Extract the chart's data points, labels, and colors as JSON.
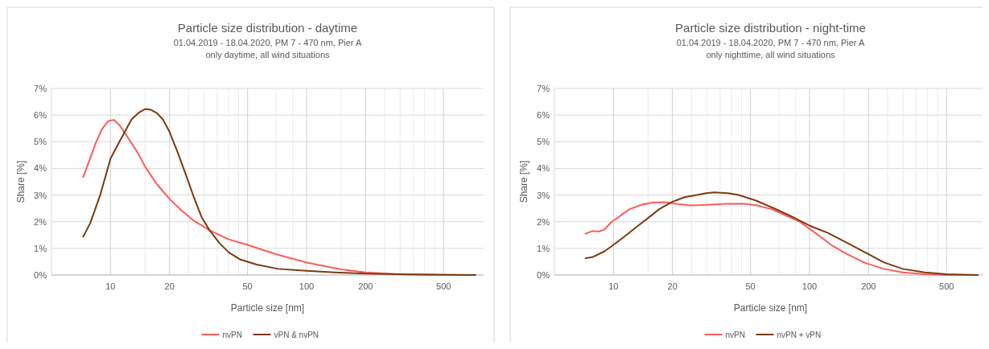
{
  "chart_data": [
    {
      "type": "line",
      "title": "Particle size distribution - daytime",
      "subtitle": "01.04.2019 - 18.04.2020, PM 7 - 470 nm, Pier A\nonly daytime, all wind situations",
      "xlabel": "Particle size [nm]",
      "ylabel": "Share [%]",
      "log": "x",
      "grid": true,
      "legend": "bottom",
      "xlim": [
        5,
        800
      ],
      "xticks": [
        10,
        {
          "value": 15,
          "label": null
        },
        20,
        {
          "value": 25,
          "label": null
        },
        {
          "value": 30,
          "label": null
        },
        {
          "value": 35,
          "label": null
        },
        {
          "value": 40,
          "label": null
        },
        {
          "value": 45,
          "label": null
        },
        50,
        {
          "value": 70,
          "label": null
        },
        {
          "value": 85,
          "label": null
        },
        100,
        {
          "value": 150,
          "label": null
        },
        200,
        {
          "value": 250,
          "label": null
        },
        {
          "value": 300,
          "label": null
        },
        {
          "value": 350,
          "label": null
        },
        {
          "value": 400,
          "label": null
        },
        {
          "value": 450,
          "label": null
        },
        500
      ],
      "ylim": [
        0,
        7
      ],
      "yticks": [
        {
          "value": 0,
          "label": "0%"
        },
        {
          "value": 1,
          "label": "1%"
        },
        {
          "value": 2,
          "label": "2%"
        },
        {
          "value": 3,
          "label": "3%"
        },
        {
          "value": 4,
          "label": "4%"
        },
        {
          "value": 5,
          "label": "5%"
        },
        {
          "value": 6,
          "label": "6%"
        },
        {
          "value": 7,
          "label": "7%"
        }
      ],
      "series": [
        {
          "name": "nvPN",
          "color": "#ff5b5b",
          "x": [
            7.26,
            8.4,
            9.06,
            9.7,
            10.4,
            11.1,
            12,
            13.8,
            15,
            17.1,
            19.9,
            23,
            26.7,
            32,
            40,
            50,
            69,
            100,
            150,
            200,
            290,
            500,
            726
          ],
          "values": [
            3.68,
            4.95,
            5.49,
            5.77,
            5.82,
            5.63,
            5.26,
            4.58,
            4.07,
            3.44,
            2.87,
            2.42,
            2.03,
            1.68,
            1.34,
            1.13,
            0.79,
            0.47,
            0.21,
            0.1,
            0.03,
            0,
            0
          ]
        },
        {
          "name": "vPN & nvPN",
          "color": "#7b3a10",
          "x": [
            7.26,
            7.88,
            8.86,
            10,
            11.1,
            12.8,
            14,
            15,
            16.1,
            17.3,
            18.5,
            20,
            21.8,
            24.3,
            26.7,
            29.2,
            32,
            35.8,
            40.2,
            46,
            55.6,
            71.8,
            100,
            139,
            200,
            347,
            726
          ],
          "values": [
            1.44,
            1.95,
            3.0,
            4.37,
            5.0,
            5.84,
            6.1,
            6.23,
            6.2,
            6.07,
            5.84,
            5.37,
            4.68,
            3.74,
            2.89,
            2.16,
            1.68,
            1.21,
            0.84,
            0.58,
            0.39,
            0.23,
            0.16,
            0.1,
            0.05,
            0.02,
            0
          ]
        }
      ]
    },
    {
      "type": "line",
      "title": "Particle size distribution - night-time",
      "subtitle": "01.04.2019 - 18.04.2020, PM 7 - 470 nm, Pier A\nonly nighttime, all wind situations",
      "xlabel": "Particle size [nm]",
      "ylabel": "Share [%]",
      "log": "x",
      "grid": true,
      "legend": "bottom",
      "xlim": [
        5,
        800
      ],
      "xticks": [
        10,
        {
          "value": 15,
          "label": null
        },
        20,
        {
          "value": 25,
          "label": null
        },
        {
          "value": 30,
          "label": null
        },
        {
          "value": 35,
          "label": null
        },
        {
          "value": 40,
          "label": null
        },
        {
          "value": 45,
          "label": null
        },
        50,
        {
          "value": 70,
          "label": null
        },
        {
          "value": 85,
          "label": null
        },
        100,
        {
          "value": 150,
          "label": null
        },
        200,
        {
          "value": 250,
          "label": null
        },
        {
          "value": 300,
          "label": null
        },
        {
          "value": 350,
          "label": null
        },
        {
          "value": 400,
          "label": null
        },
        {
          "value": 450,
          "label": null
        },
        500
      ],
      "ylim": [
        0,
        7
      ],
      "yticks": [
        {
          "value": 0,
          "label": "0%"
        },
        {
          "value": 1,
          "label": "1%"
        },
        {
          "value": 2,
          "label": "2%"
        },
        {
          "value": 3,
          "label": "3%"
        },
        {
          "value": 4,
          "label": "4%"
        },
        {
          "value": 5,
          "label": "5%"
        },
        {
          "value": 6,
          "label": "6%"
        },
        {
          "value": 7,
          "label": "7%"
        }
      ],
      "series": [
        {
          "name": "nvPN",
          "color": "#ff5b5b",
          "x": [
            7.2,
            7.8,
            8.4,
            9.0,
            9.7,
            11,
            12.1,
            13.8,
            15.9,
            18.4,
            21,
            24.7,
            29.7,
            37,
            46,
            53.4,
            64,
            77,
            89,
            107,
            129,
            155,
            193,
            240,
            299,
            387,
            500,
            721
          ],
          "values": [
            1.55,
            1.65,
            1.63,
            1.71,
            1.97,
            2.26,
            2.47,
            2.63,
            2.72,
            2.73,
            2.67,
            2.61,
            2.63,
            2.67,
            2.68,
            2.62,
            2.47,
            2.21,
            2.0,
            1.58,
            1.13,
            0.79,
            0.45,
            0.23,
            0.1,
            0.03,
            0,
            0
          ]
        },
        {
          "name": "nvPN + vPN",
          "color": "#7b3a10",
          "x": [
            7.2,
            7.8,
            9.0,
            10,
            11.5,
            13.3,
            14.8,
            17.1,
            19.9,
            23,
            26.6,
            29.7,
            32.6,
            38.4,
            43.6,
            53.4,
            66.5,
            83,
            101,
            124,
            155,
            193,
            240,
            299,
            387,
            500,
            721
          ],
          "values": [
            0.63,
            0.67,
            0.89,
            1.13,
            1.47,
            1.84,
            2.1,
            2.47,
            2.74,
            2.92,
            3.0,
            3.07,
            3.1,
            3.07,
            3.0,
            2.79,
            2.49,
            2.16,
            1.84,
            1.58,
            1.21,
            0.84,
            0.47,
            0.23,
            0.1,
            0.03,
            0
          ]
        }
      ]
    }
  ]
}
